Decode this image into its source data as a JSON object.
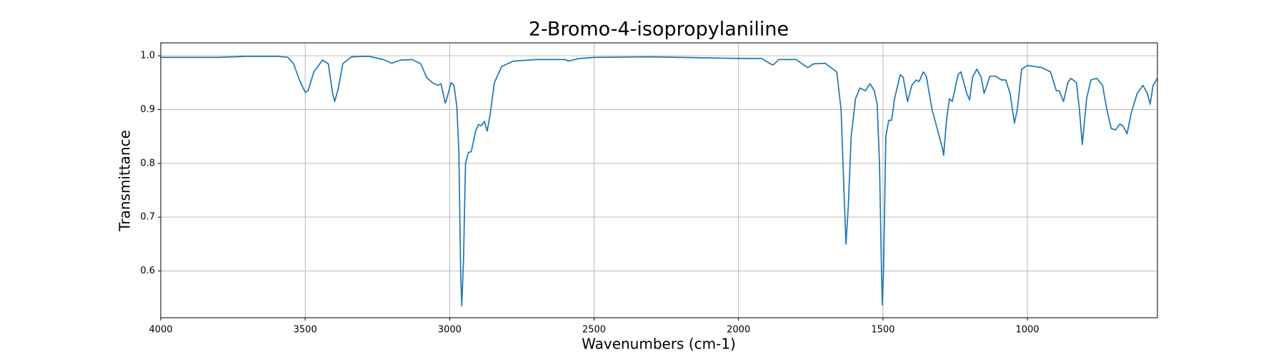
{
  "chart_data": {
    "type": "line",
    "title": "2-Bromo-4-isopropylaniline",
    "xlabel": "Wavenumbers (cm-1)",
    "ylabel": "Transmittance",
    "color": "#1f77b4",
    "grid": true,
    "xlim": [
      4000,
      550
    ],
    "ylim": [
      0.513,
      1.024
    ],
    "xticks": [
      4000,
      3500,
      3000,
      2500,
      2000,
      1500,
      1000
    ],
    "yticks": [
      0.6,
      0.7,
      0.8,
      0.9,
      {
        "value": 1,
        "label": "1.0"
      }
    ],
    "x": [
      4000,
      3800,
      3700,
      3600,
      3560,
      3540,
      3520,
      3500,
      3490,
      3470,
      3440,
      3420,
      3405,
      3398,
      3385,
      3370,
      3340,
      3280,
      3230,
      3200,
      3170,
      3130,
      3100,
      3080,
      3060,
      3040,
      3030,
      3015,
      3010,
      2995,
      2985,
      2975,
      2968,
      2962,
      2958,
      2952,
      2945,
      2935,
      2925,
      2910,
      2900,
      2890,
      2880,
      2870,
      2860,
      2845,
      2820,
      2780,
      2700,
      2600,
      2590,
      2550,
      2500,
      2300,
      2100,
      2000,
      1920,
      1890,
      1880,
      1860,
      1800,
      1780,
      1760,
      1740,
      1700,
      1660,
      1645,
      1635,
      1628,
      1620,
      1610,
      1595,
      1580,
      1560,
      1545,
      1530,
      1520,
      1512,
      1505,
      1502,
      1498,
      1490,
      1480,
      1470,
      1460,
      1440,
      1430,
      1415,
      1400,
      1385,
      1375,
      1360,
      1350,
      1330,
      1310,
      1295,
      1290,
      1280,
      1270,
      1260,
      1240,
      1230,
      1210,
      1200,
      1190,
      1175,
      1160,
      1150,
      1140,
      1130,
      1110,
      1090,
      1075,
      1060,
      1045,
      1035,
      1020,
      1000,
      950,
      920,
      900,
      890,
      875,
      860,
      850,
      830,
      820,
      810,
      795,
      780,
      760,
      740,
      725,
      710,
      695,
      680,
      670,
      655,
      640,
      620,
      600,
      585,
      575,
      565,
      550
    ],
    "values": [
      0.997,
      0.997,
      0.999,
      0.999,
      0.997,
      0.985,
      0.955,
      0.932,
      0.935,
      0.97,
      0.992,
      0.985,
      0.93,
      0.915,
      0.94,
      0.985,
      0.998,
      0.999,
      0.993,
      0.986,
      0.992,
      0.993,
      0.985,
      0.96,
      0.95,
      0.945,
      0.948,
      0.912,
      0.92,
      0.95,
      0.945,
      0.905,
      0.82,
      0.6,
      0.535,
      0.62,
      0.8,
      0.82,
      0.822,
      0.86,
      0.872,
      0.87,
      0.878,
      0.86,
      0.89,
      0.95,
      0.98,
      0.99,
      0.993,
      0.993,
      0.99,
      0.995,
      0.997,
      0.998,
      0.996,
      0.995,
      0.995,
      0.985,
      0.983,
      0.993,
      0.993,
      0.985,
      0.978,
      0.985,
      0.986,
      0.97,
      0.9,
      0.75,
      0.65,
      0.72,
      0.85,
      0.92,
      0.94,
      0.935,
      0.948,
      0.935,
      0.91,
      0.8,
      0.6,
      0.537,
      0.6,
      0.85,
      0.88,
      0.88,
      0.92,
      0.965,
      0.96,
      0.915,
      0.945,
      0.955,
      0.952,
      0.97,
      0.962,
      0.9,
      0.86,
      0.83,
      0.815,
      0.88,
      0.92,
      0.915,
      0.965,
      0.97,
      0.93,
      0.918,
      0.96,
      0.975,
      0.96,
      0.93,
      0.945,
      0.962,
      0.962,
      0.955,
      0.955,
      0.93,
      0.875,
      0.9,
      0.975,
      0.982,
      0.978,
      0.97,
      0.935,
      0.935,
      0.915,
      0.95,
      0.958,
      0.95,
      0.9,
      0.835,
      0.92,
      0.955,
      0.958,
      0.945,
      0.9,
      0.865,
      0.862,
      0.873,
      0.87,
      0.855,
      0.895,
      0.93,
      0.945,
      0.93,
      0.91,
      0.945,
      0.958
    ]
  }
}
